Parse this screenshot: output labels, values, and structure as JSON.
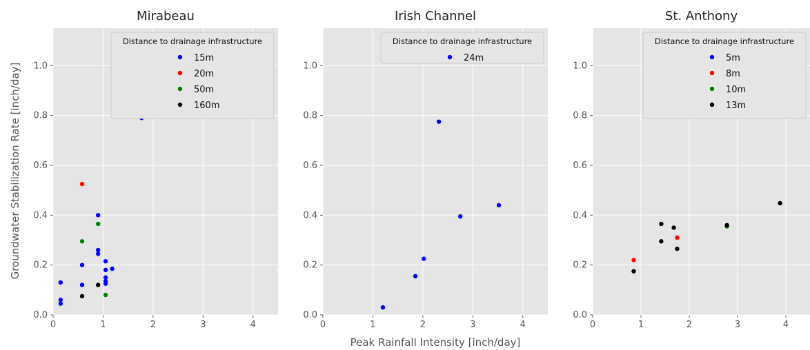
{
  "figure": {
    "xlabel": "Peak Rainfall Intensity [inch/day]",
    "ylabel": "Groundwater Stabilization Rate [inch/day]"
  },
  "chart_data": [
    {
      "type": "scatter",
      "title": "Mirabeau",
      "xlim": [
        0,
        4.5
      ],
      "ylim": [
        0,
        1.15
      ],
      "xticks": [
        "0",
        "1",
        "2",
        "3",
        "4"
      ],
      "yticks": [
        "0.0",
        "0.2",
        "0.4",
        "0.6",
        "0.8",
        "1.0"
      ],
      "legend_title": "Distance to drainage infrastructure",
      "legend_position": "top-right",
      "grid": true,
      "series": [
        {
          "name": "15m",
          "color": "#0000ff",
          "points": [
            [
              0.15,
              0.13
            ],
            [
              0.15,
              0.06
            ],
            [
              0.15,
              0.045
            ],
            [
              0.58,
              0.2
            ],
            [
              0.58,
              0.12
            ],
            [
              0.9,
              0.4
            ],
            [
              0.9,
              0.26
            ],
            [
              0.9,
              0.245
            ],
            [
              1.05,
              0.215
            ],
            [
              1.05,
              0.18
            ],
            [
              1.05,
              0.15
            ],
            [
              1.05,
              0.135
            ],
            [
              1.05,
              0.125
            ],
            [
              1.18,
              0.185
            ],
            [
              1.77,
              0.79
            ]
          ]
        },
        {
          "name": "20m",
          "color": "#ff0000",
          "points": [
            [
              0.58,
              0.525
            ]
          ]
        },
        {
          "name": "50m",
          "color": "#008000",
          "points": [
            [
              0.58,
              0.295
            ],
            [
              0.9,
              0.365
            ],
            [
              1.05,
              0.08
            ]
          ]
        },
        {
          "name": "160m",
          "color": "#000000",
          "points": [
            [
              0.58,
              0.075
            ],
            [
              0.9,
              0.12
            ]
          ]
        }
      ]
    },
    {
      "type": "scatter",
      "title": "Irish Channel",
      "xlim": [
        0,
        4.5
      ],
      "ylim": [
        0,
        1.15
      ],
      "xticks": [
        "0",
        "1",
        "2",
        "3",
        "4"
      ],
      "yticks": [
        "0.0",
        "0.2",
        "0.4",
        "0.6",
        "0.8",
        "1.0"
      ],
      "legend_title": "Distance to drainage infrastructure",
      "legend_position": "top-right",
      "grid": true,
      "series": [
        {
          "name": "24m",
          "color": "#0000ff",
          "points": [
            [
              1.2,
              0.03
            ],
            [
              1.85,
              0.155
            ],
            [
              2.02,
              0.225
            ],
            [
              2.32,
              0.775
            ],
            [
              2.75,
              0.395
            ],
            [
              3.52,
              0.44
            ]
          ]
        }
      ]
    },
    {
      "type": "scatter",
      "title": "St. Anthony",
      "xlim": [
        0,
        4.5
      ],
      "ylim": [
        0,
        1.15
      ],
      "xticks": [
        "0",
        "1",
        "2",
        "3",
        "4"
      ],
      "yticks": [
        "0.0",
        "0.2",
        "0.4",
        "0.6",
        "0.8",
        "1.0"
      ],
      "legend_title": "Distance to drainage infrastructure",
      "legend_position": "top-right",
      "grid": true,
      "series": [
        {
          "name": "5m",
          "color": "#0000ff",
          "points": []
        },
        {
          "name": "8m",
          "color": "#ff0000",
          "points": [
            [
              0.85,
              0.22
            ],
            [
              1.75,
              0.31
            ]
          ]
        },
        {
          "name": "10m",
          "color": "#008000",
          "points": [
            [
              2.78,
              0.355
            ]
          ]
        },
        {
          "name": "13m",
          "color": "#000000",
          "points": [
            [
              0.85,
              0.175
            ],
            [
              1.42,
              0.295
            ],
            [
              1.42,
              0.365
            ],
            [
              1.68,
              0.35
            ],
            [
              1.75,
              0.265
            ],
            [
              2.78,
              0.36
            ],
            [
              3.88,
              0.448
            ]
          ]
        }
      ]
    }
  ]
}
